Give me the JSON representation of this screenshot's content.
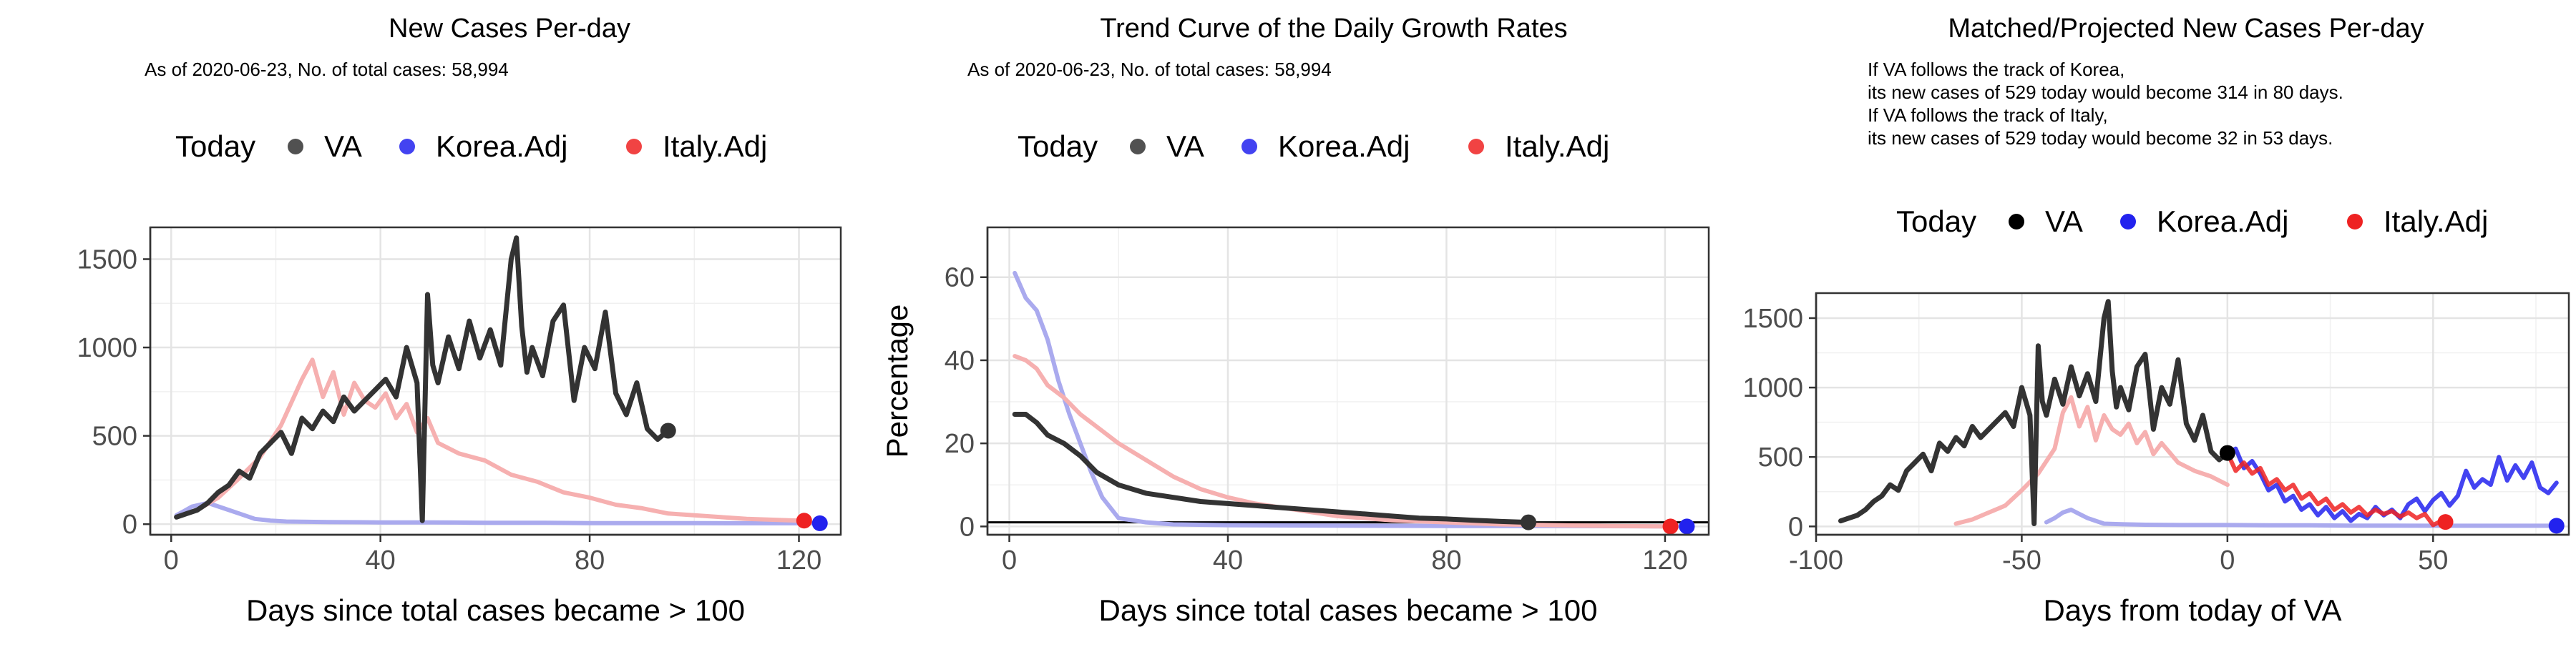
{
  "chart_data": [
    {
      "type": "line",
      "title": "New Cases Per-day",
      "subtitle": [
        "As of 2020-06-23, No. of total cases: 58,994"
      ],
      "legend": {
        "title": "Today",
        "position": "top",
        "entries": [
          "VA",
          "Korea.Adj",
          "Italy.Adj"
        ]
      },
      "xlabel": "Days since total cases became > 100",
      "ylabel": "",
      "xlim": [
        -4,
        128
      ],
      "ylim": [
        -60,
        1680
      ],
      "xticks": [
        0,
        40,
        80,
        120
      ],
      "yticks": [
        0,
        500,
        1000,
        1500
      ],
      "grid": true,
      "colors": {
        "VA": "#333333",
        "Korea.Adj": "#aaaaee",
        "Italy.Adj": "#f6b0b0",
        "marker_VA": "#333333",
        "marker_Korea": "#2222ee",
        "marker_Italy": "#ee2222"
      },
      "series": [
        {
          "name": "VA",
          "x": [
            1,
            3,
            5,
            7,
            9,
            11,
            13,
            15,
            17,
            19,
            21,
            23,
            25,
            27,
            29,
            31,
            33,
            35,
            37,
            39,
            41,
            43,
            45,
            47,
            48,
            49,
            50,
            51,
            53,
            55,
            57,
            59,
            61,
            63,
            65,
            66,
            67,
            68,
            69,
            71,
            73,
            75,
            77,
            79,
            81,
            83,
            85,
            87,
            89,
            91,
            93,
            95
          ],
          "y": [
            40,
            60,
            80,
            120,
            180,
            220,
            300,
            260,
            400,
            460,
            520,
            400,
            600,
            540,
            640,
            580,
            720,
            640,
            700,
            760,
            820,
            720,
            1000,
            800,
            20,
            1300,
            900,
            800,
            1060,
            880,
            1150,
            940,
            1100,
            900,
            1500,
            1620,
            1120,
            860,
            1000,
            840,
            1150,
            1240,
            700,
            1000,
            880,
            1200,
            740,
            620,
            800,
            540,
            480,
            530
          ]
        },
        {
          "name": "Korea.Adj",
          "x": [
            1,
            4,
            7,
            10,
            13,
            16,
            19,
            22,
            30,
            40,
            50,
            60,
            70,
            80,
            90,
            100,
            110,
            120,
            124
          ],
          "y": [
            50,
            100,
            120,
            90,
            60,
            30,
            20,
            15,
            12,
            10,
            10,
            8,
            8,
            6,
            6,
            6,
            5,
            5,
            5
          ]
        },
        {
          "name": "Italy.Adj",
          "x": [
            1,
            5,
            9,
            13,
            17,
            21,
            25,
            27,
            29,
            31,
            33,
            35,
            37,
            39,
            41,
            43,
            45,
            47,
            49,
            51,
            55,
            60,
            65,
            70,
            75,
            80,
            85,
            90,
            95,
            100,
            105,
            110,
            115,
            120,
            121
          ],
          "y": [
            40,
            80,
            150,
            260,
            380,
            560,
            820,
            930,
            720,
            860,
            620,
            800,
            700,
            660,
            740,
            600,
            680,
            520,
            600,
            460,
            400,
            360,
            280,
            240,
            180,
            150,
            110,
            90,
            60,
            50,
            40,
            30,
            25,
            20,
            20
          ]
        }
      ],
      "points": [
        {
          "name": "VA",
          "x": 95,
          "y": 529
        },
        {
          "name": "Korea.Adj",
          "x": 124,
          "y": 5
        },
        {
          "name": "Italy.Adj",
          "x": 121,
          "y": 20
        }
      ]
    },
    {
      "type": "line",
      "title": "Trend Curve of the Daily Growth Rates",
      "subtitle": [
        "As of 2020-06-23, No. of total cases: 58,994"
      ],
      "legend": {
        "title": "Today",
        "position": "top",
        "entries": [
          "VA",
          "Korea.Adj",
          "Italy.Adj"
        ]
      },
      "xlabel": "Days since total cases became > 100",
      "ylabel": "Percentage",
      "xlim": [
        -4,
        128
      ],
      "ylim": [
        -2,
        72
      ],
      "xticks": [
        0,
        40,
        80,
        120
      ],
      "yticks": [
        0,
        20,
        40,
        60
      ],
      "grid": true,
      "reference_line": 1,
      "colors": {
        "VA": "#333333",
        "Korea.Adj": "#aaaaee",
        "Italy.Adj": "#f6b0b0",
        "marker_VA": "#333333",
        "marker_Korea": "#2222ee",
        "marker_Italy": "#ee2222"
      },
      "series": [
        {
          "name": "VA",
          "x": [
            1,
            3,
            5,
            7,
            10,
            13,
            16,
            20,
            25,
            30,
            35,
            40,
            45,
            50,
            55,
            60,
            65,
            70,
            75,
            80,
            85,
            90,
            95
          ],
          "y": [
            27,
            27,
            25,
            22,
            20,
            17,
            13,
            10,
            8,
            7,
            6,
            5.5,
            5,
            4.5,
            4,
            3.5,
            3,
            2.5,
            2,
            1.8,
            1.5,
            1.2,
            1
          ]
        },
        {
          "name": "Korea.Adj",
          "x": [
            1,
            3,
            5,
            7,
            9,
            11,
            13,
            15,
            17,
            20,
            25,
            30,
            40,
            60,
            80,
            100,
            124
          ],
          "y": [
            61,
            55,
            52,
            45,
            35,
            27,
            20,
            13,
            7,
            2,
            1,
            0.5,
            0.3,
            0.2,
            0.1,
            0.1,
            0
          ]
        },
        {
          "name": "Italy.Adj",
          "x": [
            1,
            3,
            5,
            7,
            10,
            13,
            16,
            20,
            25,
            30,
            35,
            40,
            45,
            50,
            55,
            60,
            70,
            80,
            90,
            100,
            110,
            121
          ],
          "y": [
            41,
            40,
            38,
            34,
            31,
            27,
            24,
            20,
            16,
            12,
            9,
            7,
            5.5,
            4.5,
            3.5,
            2.5,
            1.5,
            1,
            0.5,
            0.3,
            0.1,
            0
          ]
        }
      ],
      "points": [
        {
          "name": "VA",
          "x": 95,
          "y": 1
        },
        {
          "name": "Korea.Adj",
          "x": 124,
          "y": 0
        },
        {
          "name": "Italy.Adj",
          "x": 121,
          "y": 0
        }
      ]
    },
    {
      "type": "line",
      "title": "Matched/Projected New Cases Per-day",
      "subtitle": [
        "If VA follows the track of Korea,",
        "its new cases of 529 today would become 314 in 80 days.",
        "If VA follows the track of Italy,",
        "its new cases of 529 today would become 32 in 53 days."
      ],
      "legend": {
        "title": "Today",
        "position": "top",
        "entries": [
          "VA",
          "Korea.Adj",
          "Italy.Adj"
        ]
      },
      "xlabel": "Days from today of VA",
      "ylabel": "",
      "xlim": [
        -100,
        83
      ],
      "ylim": [
        -60,
        1680
      ],
      "xticks": [
        -100,
        -50,
        0,
        50
      ],
      "yticks": [
        0,
        500,
        1000,
        1500
      ],
      "grid": true,
      "colors": {
        "VA": "#333333",
        "Korea.Adj": "#aaaaee",
        "Italy.Adj": "#f6b0b0",
        "proj_Korea": "#2222ee",
        "proj_Italy": "#ee2222",
        "marker_VA": "#000000",
        "marker_Korea": "#2222ee",
        "marker_Italy": "#ee2222"
      },
      "series": [
        {
          "name": "VA",
          "x": [
            -94,
            -92,
            -90,
            -88,
            -86,
            -84,
            -82,
            -80,
            -78,
            -76,
            -74,
            -72,
            -70,
            -68,
            -66,
            -64,
            -62,
            -60,
            -58,
            -56,
            -54,
            -52,
            -50,
            -48,
            -47,
            -46,
            -45,
            -44,
            -42,
            -40,
            -38,
            -36,
            -34,
            -32,
            -30,
            -29,
            -28,
            -27,
            -26,
            -24,
            -22,
            -20,
            -18,
            -16,
            -14,
            -12,
            -10,
            -8,
            -6,
            -4,
            -2,
            0
          ],
          "y": [
            40,
            60,
            80,
            120,
            180,
            220,
            300,
            260,
            400,
            460,
            520,
            400,
            600,
            540,
            640,
            580,
            720,
            640,
            700,
            760,
            820,
            720,
            1000,
            800,
            20,
            1300,
            900,
            800,
            1060,
            880,
            1150,
            940,
            1100,
            900,
            1500,
            1620,
            1120,
            860,
            1000,
            840,
            1150,
            1240,
            700,
            1000,
            880,
            1200,
            740,
            620,
            800,
            540,
            480,
            529
          ]
        },
        {
          "name": "Korea.Adj",
          "x": [
            -44,
            -42,
            -40,
            -38,
            -36,
            -34,
            -32,
            -30,
            -25,
            -20,
            -10,
            0,
            10,
            20,
            30,
            40,
            50,
            60,
            70,
            80
          ],
          "y": [
            30,
            60,
            100,
            120,
            90,
            60,
            40,
            20,
            15,
            12,
            10,
            10,
            8,
            8,
            6,
            6,
            5,
            5,
            5,
            5
          ]
        },
        {
          "name": "Italy.Adj",
          "x": [
            -66,
            -62,
            -58,
            -54,
            -50,
            -46,
            -42,
            -40,
            -38,
            -36,
            -34,
            -32,
            -30,
            -28,
            -26,
            -24,
            -22,
            -20,
            -18,
            -16,
            -12,
            -8,
            -4,
            0
          ],
          "y": [
            20,
            50,
            100,
            150,
            260,
            380,
            560,
            820,
            930,
            720,
            860,
            620,
            800,
            700,
            660,
            740,
            600,
            680,
            520,
            600,
            460,
            400,
            360,
            300
          ]
        },
        {
          "name": "Korea.Adj projected",
          "x": [
            0,
            2,
            4,
            6,
            8,
            10,
            12,
            14,
            16,
            18,
            20,
            22,
            24,
            26,
            28,
            30,
            32,
            34,
            36,
            38,
            40,
            42,
            44,
            46,
            48,
            50,
            52,
            54,
            56,
            58,
            60,
            62,
            64,
            66,
            68,
            70,
            72,
            74,
            76,
            78,
            80
          ],
          "y": [
            529,
            560,
            420,
            470,
            380,
            260,
            300,
            180,
            220,
            120,
            160,
            80,
            140,
            60,
            110,
            40,
            90,
            60,
            140,
            80,
            120,
            60,
            160,
            200,
            110,
            190,
            240,
            150,
            220,
            400,
            280,
            340,
            300,
            500,
            330,
            440,
            350,
            460,
            280,
            240,
            314
          ]
        },
        {
          "name": "Italy.Adj projected",
          "x": [
            0,
            2,
            4,
            6,
            8,
            10,
            12,
            14,
            16,
            18,
            20,
            22,
            24,
            26,
            28,
            30,
            32,
            34,
            36,
            38,
            40,
            42,
            44,
            46,
            48,
            50,
            52,
            53
          ],
          "y": [
            529,
            400,
            460,
            380,
            420,
            300,
            340,
            260,
            300,
            200,
            240,
            160,
            200,
            120,
            160,
            100,
            140,
            80,
            120,
            90,
            110,
            70,
            100,
            60,
            90,
            10,
            40,
            32
          ]
        }
      ],
      "points": [
        {
          "name": "VA",
          "x": 0,
          "y": 529
        },
        {
          "name": "Korea.Adj",
          "x": 80,
          "y": 5
        },
        {
          "name": "Italy.Adj",
          "x": 53,
          "y": 32
        }
      ]
    }
  ]
}
